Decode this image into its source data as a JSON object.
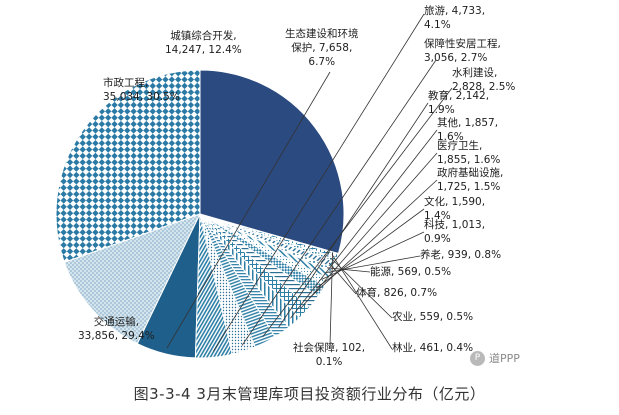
{
  "colors": {
    "navy": "#2b4a80",
    "teal_dark": "#1f5f8b",
    "teal_mid": "#2e7fa6",
    "light_blue": "#a9c9dc",
    "checker": "#2b7aa5",
    "leader": "#333333"
  },
  "chart_data": {
    "type": "pie",
    "title": "图3-3-4  3月末管理库项目投资额行业分布（亿元）",
    "start_direction": "12 o'clock",
    "order": "counter-clockwise",
    "series": [
      {
        "key": "municipal",
        "name": "市政工程",
        "value": 35034,
        "percent": "30.5%",
        "line1": "市政工程,",
        "line2": "35,034, 30.5%"
      },
      {
        "key": "urban",
        "name": "城镇综合开发",
        "value": 14247,
        "percent": "12.4%",
        "line1": "城镇综合开发,",
        "line2": "14,247, 12.4%"
      },
      {
        "key": "eco",
        "name": "生态建设和环境保护",
        "value": 7658,
        "percent": "6.7%",
        "line1": "生态建设和环境",
        "line2": "保护, 7,658,",
        "line3": "6.7%"
      },
      {
        "key": "tourism",
        "name": "旅游",
        "value": 4733,
        "percent": "4.1%",
        "line1": "旅游, 4,733,",
        "line2": "4.1%"
      },
      {
        "key": "housing",
        "name": "保障性安居工程",
        "value": 3056,
        "percent": "2.7%",
        "line1": "保障性安居工程,",
        "line2": "3,056, 2.7%"
      },
      {
        "key": "water",
        "name": "水利建设",
        "value": 2828,
        "percent": "2.5%",
        "line1": "水利建设,",
        "line2": "2,828, 2.5%"
      },
      {
        "key": "education",
        "name": "教育",
        "value": 2142,
        "percent": "1.9%",
        "line1": "教育, 2,142,",
        "line2": "1.9%"
      },
      {
        "key": "other",
        "name": "其他",
        "value": 1857,
        "percent": "1.6%",
        "line1": "其他, 1,857,",
        "line2": "1.6%"
      },
      {
        "key": "medical",
        "name": "医疗卫生",
        "value": 1855,
        "percent": "1.6%",
        "line1": "医疗卫生,",
        "line2": "1,855, 1.6%"
      },
      {
        "key": "gov",
        "name": "政府基础设施",
        "value": 1725,
        "percent": "1.5%",
        "line1": "政府基础设施,",
        "line2": "1,725, 1.5%"
      },
      {
        "key": "culture",
        "name": "文化",
        "value": 1590,
        "percent": "1.4%",
        "line1": "文化, 1,590,",
        "line2": "1.4%"
      },
      {
        "key": "tech",
        "name": "科技",
        "value": 1013,
        "percent": "0.9%",
        "line1": "科技, 1,013,",
        "line2": "0.9%"
      },
      {
        "key": "elderly",
        "name": "养老",
        "value": 939,
        "percent": "0.8%",
        "line1": "养老, 939, 0.8%"
      },
      {
        "key": "energy",
        "name": "能源",
        "value": 569,
        "percent": "0.5%",
        "line1": "能源, 569, 0.5%"
      },
      {
        "key": "sports",
        "name": "体育",
        "value": 826,
        "percent": "0.7%",
        "line1": "体育, 826, 0.7%"
      },
      {
        "key": "agriculture",
        "name": "农业",
        "value": 559,
        "percent": "0.5%",
        "line1": "农业, 559, 0.5%"
      },
      {
        "key": "forestry",
        "name": "林业",
        "value": 461,
        "percent": "0.4%",
        "line1": "林业, 461, 0.4%"
      },
      {
        "key": "social",
        "name": "社会保障",
        "value": 102,
        "percent": "0.1%",
        "line1": "社会保障, 102,",
        "line2": "0.1%"
      },
      {
        "key": "transport",
        "name": "交通运输",
        "value": 33856,
        "percent": "29.4%",
        "line1": "交通运输,",
        "line2": "33,856, 29.4%"
      }
    ]
  },
  "watermark": {
    "icon_text": "P",
    "text": "道PPP"
  }
}
